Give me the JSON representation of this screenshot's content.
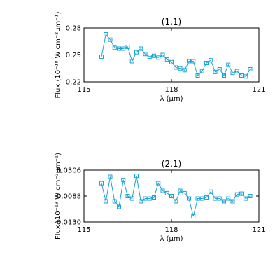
{
  "chart_data": [
    {
      "type": "line",
      "title": "(1,1)",
      "xlabel": "λ (μm)",
      "ylabel": "Flux (10⁻¹⁸ W cm⁻²μm⁻¹)",
      "xlim": [
        115,
        121
      ],
      "ylim": [
        0.22,
        0.28
      ],
      "xticks": [
        115,
        118,
        121
      ],
      "xtick_labels": [
        "115",
        "118",
        "121"
      ],
      "yticks": [
        0.22,
        0.25,
        0.28
      ],
      "ytick_labels": [
        "0.22",
        "0.25",
        "0.28"
      ],
      "series": [
        {
          "color": "#1aa3d3",
          "marker": "square",
          "x": [
            115.6,
            115.75,
            115.9,
            116.05,
            116.2,
            116.35,
            116.5,
            116.65,
            116.8,
            116.95,
            117.1,
            117.25,
            117.4,
            117.55,
            117.7,
            117.85,
            118.0,
            118.15,
            118.3,
            118.45,
            118.6,
            118.75,
            118.9,
            119.05,
            119.2,
            119.35,
            119.5,
            119.65,
            119.8,
            119.95,
            120.1,
            120.25,
            120.4,
            120.55,
            120.7
          ],
          "y": [
            0.248,
            0.273,
            0.267,
            0.258,
            0.257,
            0.257,
            0.259,
            0.243,
            0.253,
            0.257,
            0.251,
            0.248,
            0.249,
            0.247,
            0.25,
            0.245,
            0.242,
            0.236,
            0.235,
            0.233,
            0.243,
            0.243,
            0.227,
            0.232,
            0.241,
            0.244,
            0.231,
            0.234,
            0.227,
            0.239,
            0.23,
            0.232,
            0.227,
            0.226,
            0.234
          ]
        }
      ]
    },
    {
      "type": "line",
      "title": "(2,1)",
      "xlabel": "λ (μm)",
      "ylabel": "Flux (10⁻¹⁸ W cm⁻²μm⁻¹)",
      "xlim": [
        115,
        121
      ],
      "ylim": [
        -0.013,
        0.0306
      ],
      "xticks": [
        115,
        118,
        121
      ],
      "xtick_labels": [
        "115",
        "118",
        "121"
      ],
      "yticks": [
        -0.013,
        0.0088,
        0.0306
      ],
      "ytick_labels": [
        "-0.0130",
        "0.0088",
        "0.0306"
      ],
      "series": [
        {
          "color": "#1aa3d3",
          "marker": "square",
          "x": [
            115.6,
            115.75,
            115.9,
            116.05,
            116.2,
            116.35,
            116.5,
            116.65,
            116.8,
            116.95,
            117.1,
            117.25,
            117.4,
            117.55,
            117.7,
            117.85,
            118.0,
            118.15,
            118.3,
            118.45,
            118.6,
            118.75,
            118.9,
            119.05,
            119.2,
            119.35,
            119.5,
            119.65,
            119.8,
            119.95,
            120.1,
            120.25,
            120.4,
            120.55,
            120.7
          ],
          "y": [
            0.0196,
            0.0044,
            0.025,
            0.0044,
            -0.0003,
            0.0224,
            0.0088,
            0.0067,
            0.0258,
            0.0044,
            0.0067,
            0.0067,
            0.0076,
            0.0196,
            0.0132,
            0.0112,
            0.0088,
            0.0044,
            0.0132,
            0.0112,
            0.0067,
            -0.0083,
            0.0067,
            0.0067,
            0.0076,
            0.0125,
            0.0067,
            0.0067,
            0.0044,
            0.0067,
            0.0044,
            0.0102,
            0.0108,
            0.0067,
            0.0088
          ]
        }
      ]
    }
  ]
}
